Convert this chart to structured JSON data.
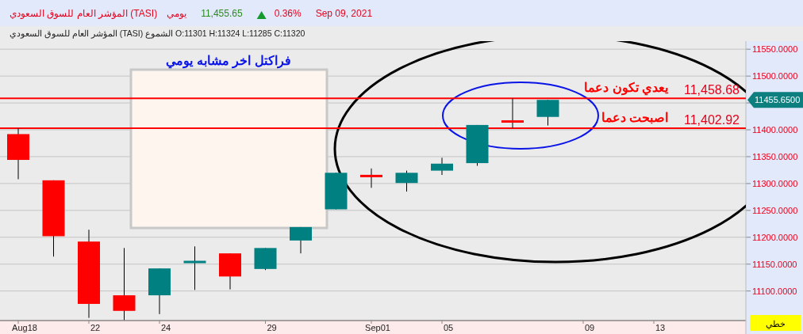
{
  "chart_data": {
    "type": "candlestick",
    "title": "المؤشر العام للسوق السعودي (TASI)",
    "subtitle": "المؤشر العام للسوق السعودي (TASI) الشموع O:11301 H:11324 L:11285 C:11320",
    "categories": [
      "Aug18",
      null,
      "22",
      null,
      "24",
      null,
      null,
      "29",
      null,
      null,
      "Sep01",
      null,
      "05",
      null,
      null,
      null,
      "09",
      null,
      "13",
      null,
      null
    ],
    "ohlc": [
      [
        11392,
        11403,
        11308,
        11344
      ],
      [
        11306,
        11306,
        11164,
        11202
      ],
      [
        11192,
        11214,
        11050,
        11076
      ],
      [
        11092,
        11180,
        11046,
        11063
      ],
      [
        11092,
        11142,
        11057,
        11142
      ],
      [
        11153,
        11183,
        11102,
        11155
      ],
      [
        11170,
        11170,
        11103,
        11127
      ],
      [
        11141,
        11180,
        11139,
        11180
      ],
      [
        11194,
        11219,
        11170,
        11219
      ],
      [
        11252,
        11320,
        11252,
        11320
      ],
      [
        11315,
        11328,
        11292,
        11313
      ],
      [
        11301,
        11324,
        11285,
        11320
      ],
      [
        11324,
        11348,
        11316,
        11337
      ],
      [
        11338,
        11409,
        11333,
        11409
      ],
      [
        11416,
        11458.68,
        11402.92,
        11415
      ],
      [
        11424,
        11456,
        11408,
        11455.65
      ],
      null,
      null,
      null,
      null,
      null
    ],
    "colors": [
      "#ff0000",
      "#ff0000",
      "#ff0000",
      "#ff0000",
      "#008080",
      "#008080",
      "#ff0000",
      "#008080",
      "#008080",
      "#008080",
      "#ff0000",
      "#008080",
      "#008080",
      "#008080",
      "#ff0000",
      "#008080",
      null,
      null,
      null,
      null,
      null
    ],
    "ylim": [
      11045,
      11565
    ],
    "yticks": [
      {
        "value": 11100,
        "label": "11100.0000"
      },
      {
        "value": 11150,
        "label": "11150.0000"
      },
      {
        "value": 11200,
        "label": "11200.0000"
      },
      {
        "value": 11250,
        "label": "11250.0000"
      },
      {
        "value": 11300,
        "label": "11300.0000"
      },
      {
        "value": 11350,
        "label": "11350.0000"
      },
      {
        "value": 11400,
        "label": "11400.0000"
      },
      {
        "value": 11450,
        "label": null
      },
      {
        "value": 11500,
        "label": "11500.0000"
      },
      {
        "value": 11550,
        "label": "11550.0000"
      }
    ],
    "grid": "y",
    "ref_lines": [
      {
        "axis": "y",
        "value": 11458.68,
        "label": "يعدي تكون دعما",
        "color": "#ff0000"
      },
      {
        "axis": "y",
        "value": 11402.92,
        "label": "اصبحت دعما",
        "color": "#ff0000"
      }
    ],
    "annotations": [
      "يومي",
      "11,455.65",
      "0.36%",
      "Sep 09, 2021",
      {
        "text": "11,458.68",
        "y": 11458.68
      },
      {
        "text": "11,402.92",
        "y": 11402.92
      },
      "فراكتل اخر مشابه يومي",
      "خطي",
      "11455.6500"
    ]
  }
}
